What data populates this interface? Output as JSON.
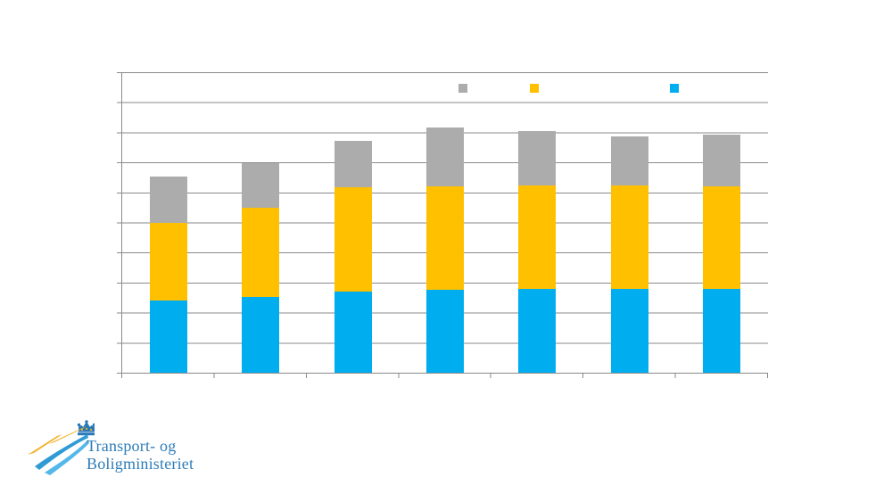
{
  "chart_data": {
    "type": "bar",
    "stacked": true,
    "title": "",
    "categories": [
      "",
      "",
      "",
      "",
      "",
      "",
      ""
    ],
    "series": [
      {
        "name": "",
        "color": "#00AEEF",
        "values": [
          2.4,
          2.53,
          2.71,
          2.76,
          2.78,
          2.8,
          2.78
        ]
      },
      {
        "name": "",
        "color": "#FFC000",
        "values": [
          2.6,
          2.95,
          3.46,
          3.43,
          3.44,
          3.44,
          3.41
        ]
      },
      {
        "name": "",
        "color": "#ACACAC",
        "values": [
          1.54,
          1.48,
          1.55,
          1.98,
          1.83,
          1.63,
          1.73
        ]
      }
    ],
    "xlabel": "",
    "ylabel": "",
    "ylim": [
      0,
      10
    ],
    "y_gridline_intervals": 10,
    "grid": true,
    "tick_labels_visible": false,
    "legend": {
      "position": "top-inside",
      "entries": [
        {
          "label": "",
          "color": "#ACACAC"
        },
        {
          "label": "",
          "color": "#FFC000"
        },
        {
          "label": "",
          "color": "#00AEEF"
        }
      ]
    },
    "colors": {
      "axis": "#8a8a8a",
      "gridline": "#8a8a8a",
      "background": "#ffffff"
    }
  },
  "logo": {
    "line1": "Transport- og",
    "line2": "Boligministeriet",
    "text_color": "#2e7cb8",
    "mark": {
      "crown_color": "#2878b8",
      "swoosh_yellow": "#f3b229",
      "swoosh_blue_dark": "#2e9bd6",
      "swoosh_blue_light": "#54b9e9"
    }
  }
}
